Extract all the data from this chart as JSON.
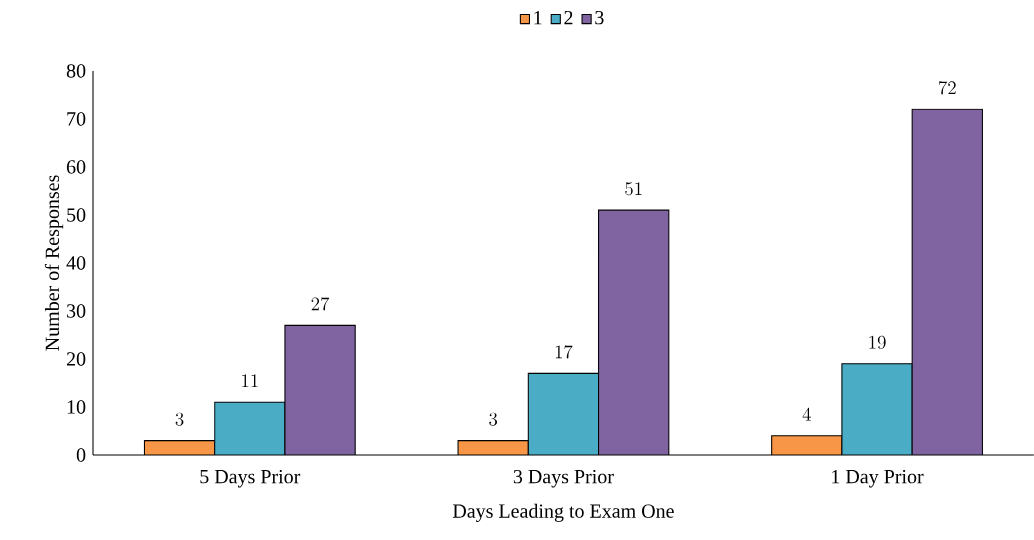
{
  "chart_data": {
    "type": "bar",
    "xlabel": "Days Leading to Exam  One",
    "ylabel": "Number of Responses",
    "categories": [
      "5 Days Prior",
      "3 Days Prior",
      "1 Day Prior"
    ],
    "series": [
      {
        "name": "1",
        "color": "#f79646",
        "values": [
          3,
          3,
          4
        ]
      },
      {
        "name": "2",
        "color": "#4bacc6",
        "values": [
          11,
          17,
          19
        ]
      },
      {
        "name": "3",
        "color": "#8064a2",
        "values": [
          27,
          51,
          72
        ]
      }
    ],
    "ylim": [
      0,
      80
    ],
    "yticks": [
      0,
      10,
      20,
      30,
      40,
      50,
      60,
      70,
      80
    ],
    "data_labels": true,
    "legend": "top",
    "grid": false
  }
}
